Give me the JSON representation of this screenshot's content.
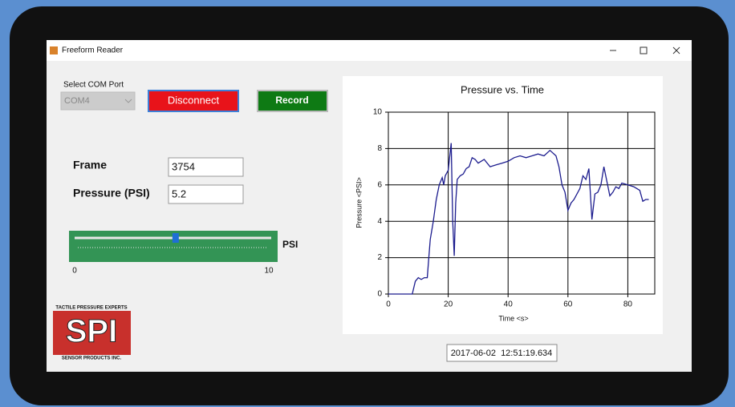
{
  "window": {
    "title": "Freeform Reader"
  },
  "controls": {
    "com_port_label": "Select COM Port",
    "com_port": "COM4",
    "disconnect": "Disconnect",
    "record": "Record",
    "frame_label": "Frame",
    "frame_value": "3754",
    "pressure_label": "Pressure (PSI)",
    "pressure_value": "5.2",
    "slider": {
      "min": 0,
      "max": 10,
      "value": 5.2,
      "unit": "PSI"
    }
  },
  "logo": {
    "tagline": "TACTILE PRESSURE EXPERTS",
    "name": "SPI",
    "company": "SENSOR PRODUCTS INC."
  },
  "timestamp": "2017-06-02  12:51:19.634",
  "chart_data": {
    "type": "line",
    "title": "Pressure vs. Time",
    "x_label": "Time <s>",
    "y_label": "Pressure <PSI>",
    "color": "#1c1c8e",
    "grid": true,
    "xlim": [
      0,
      89
    ],
    "ylim": [
      0,
      10
    ],
    "xticks": [
      0,
      20,
      40,
      60,
      80
    ],
    "yticks": [
      0,
      2,
      4,
      6,
      8,
      10
    ],
    "x": [
      0,
      8,
      9,
      10,
      11,
      12,
      13,
      13.5,
      14,
      15,
      16,
      17,
      18,
      18.5,
      19,
      20,
      21,
      21.5,
      22,
      22.5,
      23,
      24,
      25,
      26,
      27,
      28,
      29,
      30,
      32,
      34,
      36,
      38,
      40,
      42,
      44,
      46,
      48,
      50,
      52,
      54,
      56,
      57,
      58,
      59,
      60,
      61,
      62,
      64,
      65,
      66,
      67,
      68,
      69,
      70,
      71,
      72,
      73,
      74,
      75,
      76,
      77,
      78,
      80,
      82,
      84,
      85,
      86,
      87
    ],
    "values": [
      0,
      0,
      0.7,
      0.9,
      0.8,
      0.9,
      0.9,
      2,
      3,
      4,
      5.2,
      6,
      6.4,
      6,
      6.5,
      6.8,
      8.3,
      4,
      2.1,
      5,
      6.3,
      6.5,
      6.6,
      6.9,
      7,
      7.5,
      7.4,
      7.2,
      7.4,
      7,
      7.1,
      7.2,
      7.3,
      7.5,
      7.6,
      7.5,
      7.6,
      7.7,
      7.6,
      7.9,
      7.6,
      7,
      6,
      5.6,
      4.6,
      5,
      5.2,
      5.8,
      6.5,
      6.3,
      6.9,
      4.1,
      5.5,
      5.6,
      6,
      7,
      6.2,
      5.4,
      5.6,
      5.9,
      5.8,
      6.1,
      6,
      5.9,
      5.7,
      5.1,
      5.2,
      5.2
    ]
  }
}
